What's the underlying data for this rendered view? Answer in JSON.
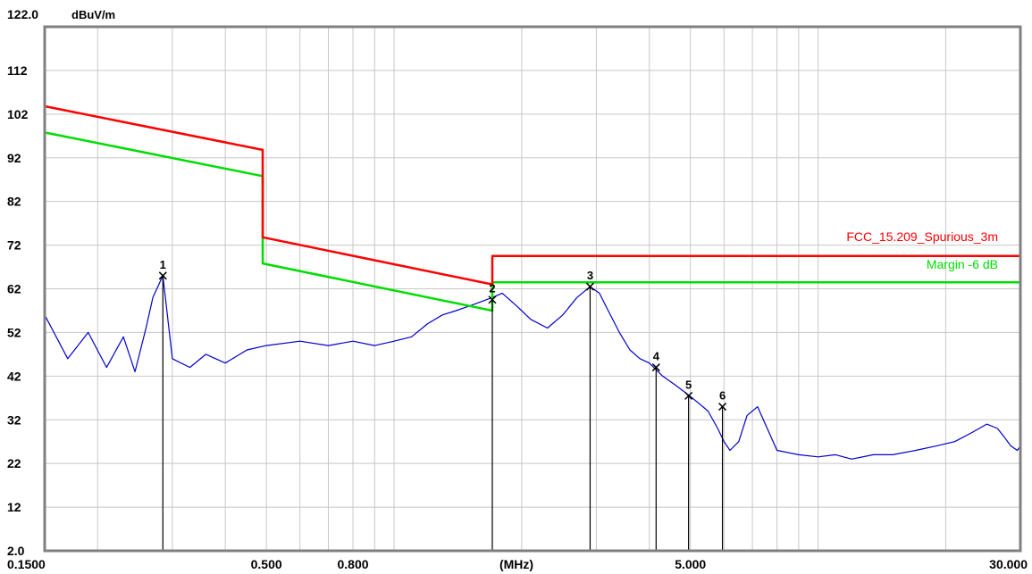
{
  "chart_data": {
    "type": "line",
    "title": "",
    "ylabel": "dBuV/m",
    "xlabel": "(MHz)",
    "x_scale": "log",
    "xlim": [
      0.15,
      30
    ],
    "ylim": [
      2,
      122
    ],
    "grid": true,
    "y_ticks": [
      {
        "value": 122,
        "label": "122.0"
      },
      {
        "value": 112,
        "label": "112"
      },
      {
        "value": 102,
        "label": "102"
      },
      {
        "value": 92,
        "label": "92"
      },
      {
        "value": 82,
        "label": "82"
      },
      {
        "value": 72,
        "label": "72"
      },
      {
        "value": 62,
        "label": "62"
      },
      {
        "value": 52,
        "label": "52"
      },
      {
        "value": 42,
        "label": "42"
      },
      {
        "value": 32,
        "label": "32"
      },
      {
        "value": 22,
        "label": "22"
      },
      {
        "value": 12,
        "label": "12"
      },
      {
        "value": 2,
        "label": "2.0"
      }
    ],
    "x_ticks": [
      {
        "value": 0.15,
        "label": "0.1500"
      },
      {
        "value": 0.5,
        "label": "0.500"
      },
      {
        "value": 0.8,
        "label": "0.800"
      },
      {
        "value": 5,
        "label": "5.000"
      },
      {
        "value": 30,
        "label": "30.000"
      }
    ],
    "series": [
      {
        "name": "FCC_15.209_Spurious_3m",
        "color": "#ff0000",
        "x": [
          0.15,
          0.49,
          0.49,
          1.705,
          1.705,
          30
        ],
        "y": [
          103.8,
          93.8,
          73.8,
          63.0,
          69.5,
          69.5
        ]
      },
      {
        "name": "Margin -6 dB",
        "color": "#00dd00",
        "x": [
          0.15,
          0.49,
          0.49,
          1.705,
          1.705,
          30
        ],
        "y": [
          97.8,
          87.8,
          67.8,
          57.0,
          63.5,
          63.5
        ]
      },
      {
        "name": "",
        "color": "#0000cc",
        "x": [
          0.15,
          0.17,
          0.19,
          0.21,
          0.23,
          0.245,
          0.26,
          0.27,
          0.285,
          0.3,
          0.33,
          0.36,
          0.4,
          0.45,
          0.5,
          0.6,
          0.7,
          0.8,
          0.9,
          1.0,
          1.1,
          1.2,
          1.3,
          1.4,
          1.5,
          1.6,
          1.705,
          1.8,
          1.95,
          2.1,
          2.3,
          2.5,
          2.7,
          2.9,
          3.05,
          3.2,
          3.4,
          3.6,
          3.8,
          4.0,
          4.3,
          4.6,
          4.9,
          5.2,
          5.5,
          5.8,
          6.0,
          6.2,
          6.5,
          6.8,
          7.2,
          8.0,
          9.0,
          10.0,
          11.0,
          12.0,
          13.5,
          15.0,
          17.0,
          19.0,
          21.0,
          23.0,
          25.0,
          26.5,
          27.5,
          28.5,
          29.5,
          30.0
        ],
        "y": [
          56,
          46,
          52,
          44,
          51,
          43,
          53,
          60,
          65,
          46,
          44,
          47,
          45,
          48,
          49,
          50,
          49,
          50,
          49,
          50,
          51,
          54,
          56,
          57,
          58,
          59,
          60,
          61,
          58,
          55,
          53,
          56,
          60,
          62.5,
          61,
          57,
          52,
          48,
          46,
          45,
          42,
          40,
          38,
          36,
          34,
          30,
          27,
          25,
          27,
          33,
          35,
          25,
          24,
          23.5,
          24,
          23,
          24,
          24,
          25,
          26,
          27,
          29,
          31,
          30,
          28,
          26,
          25,
          26
        ]
      }
    ],
    "markers": [
      {
        "id": "1",
        "x": 0.285,
        "y": 65.0
      },
      {
        "id": "2",
        "x": 1.705,
        "y": 59.5
      },
      {
        "id": "3",
        "x": 2.9,
        "y": 62.5
      },
      {
        "id": "4",
        "x": 4.15,
        "y": 44.0
      },
      {
        "id": "5",
        "x": 4.95,
        "y": 37.5
      },
      {
        "id": "6",
        "x": 5.95,
        "y": 35.0
      }
    ],
    "legend": [
      {
        "text": "FCC_15.209_Spurious_3m",
        "color": "#ff0000"
      },
      {
        "text": "Margin -6 dB",
        "color": "#00dd00"
      }
    ]
  }
}
